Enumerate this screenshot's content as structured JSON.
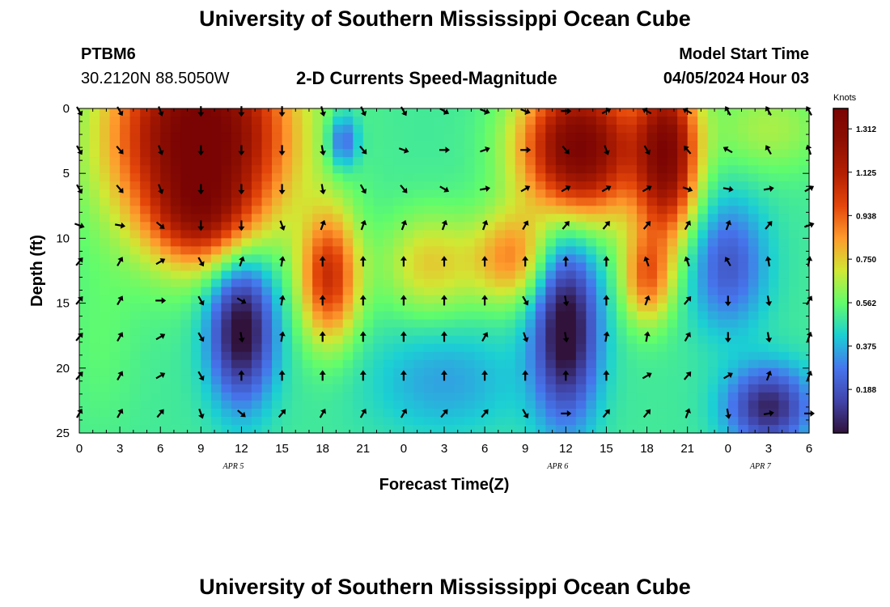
{
  "header": {
    "title": "University of Southern Mississippi Ocean Cube",
    "station_id": "PTBM6",
    "station_coords": "30.2120N  88.5050W",
    "chart_title": "2-D Currents Speed-Magnitude",
    "model_label": "Model Start Time",
    "model_time": "04/05/2024 Hour 03"
  },
  "footer": {
    "title": "University of Southern Mississippi Ocean Cube"
  },
  "chart_data": {
    "type": "heatmap",
    "xlabel": "Forecast Time(Z)",
    "ylabel": "Depth (ft)",
    "x_tick_labels": [
      "0",
      "3",
      "6",
      "9",
      "12",
      "15",
      "18",
      "21",
      "0",
      "3",
      "6",
      "9",
      "12",
      "15",
      "18",
      "21",
      "0",
      "3",
      "6"
    ],
    "date_labels": [
      {
        "label": "APR 5",
        "tick_index": 3.8
      },
      {
        "label": "APR 6",
        "tick_index": 11.8
      },
      {
        "label": "APR 7",
        "tick_index": 16.8
      }
    ],
    "xlim": [
      0,
      54
    ],
    "ylim": [
      0,
      25
    ],
    "y_ticks": [
      0,
      5,
      10,
      15,
      20,
      25
    ],
    "y_inverted": true,
    "colorbar": {
      "title": "Knots",
      "range": [
        0,
        1.4
      ],
      "tick_labels": [
        "1.312",
        "1.125",
        "0.938",
        "0.750",
        "0.562",
        "0.375",
        "0.188"
      ],
      "tick_values": [
        1.312,
        1.125,
        0.938,
        0.75,
        0.562,
        0.375,
        0.188
      ]
    },
    "speed_blobs": [
      {
        "x": 9,
        "y": 2,
        "sx": 4.5,
        "sy": 5.5,
        "v": 0.95
      },
      {
        "x": 9,
        "y": 8.5,
        "sx": 2.5,
        "sy": 2.5,
        "v": 0.35
      },
      {
        "x": 37,
        "y": 3,
        "sx": 3,
        "sy": 3.8,
        "v": 0.9
      },
      {
        "x": 43.5,
        "y": 3.5,
        "sx": 1.6,
        "sy": 4.5,
        "v": 0.8
      },
      {
        "x": 18.5,
        "y": 13,
        "sx": 1.5,
        "sy": 3.5,
        "v": 0.55
      },
      {
        "x": 26,
        "y": 12,
        "sx": 2.5,
        "sy": 2.8,
        "v": 0.25
      },
      {
        "x": 32,
        "y": 11.5,
        "sx": 2,
        "sy": 2.5,
        "v": 0.35
      },
      {
        "x": 42,
        "y": 13,
        "sx": 1.3,
        "sy": 2.5,
        "v": 0.4
      },
      {
        "x": 51,
        "y": 1.5,
        "sx": 3,
        "sy": 2.5,
        "v": 0.15
      },
      {
        "x": 12,
        "y": 17,
        "sx": 1.7,
        "sy": 4,
        "v": -0.55
      },
      {
        "x": 36,
        "y": 17,
        "sx": 1.7,
        "sy": 5,
        "v": -0.55
      },
      {
        "x": 51,
        "y": 23,
        "sx": 2.2,
        "sy": 2.2,
        "v": -0.45
      },
      {
        "x": 48,
        "y": 12,
        "sx": 2,
        "sy": 3.5,
        "v": -0.3
      },
      {
        "x": 19.5,
        "y": 2.5,
        "sx": 0.8,
        "sy": 1.5,
        "v": -0.3
      },
      {
        "x": 27,
        "y": 21,
        "sx": 4,
        "sy": 3,
        "v": -0.15
      },
      {
        "x": 1.5,
        "y": 18,
        "sx": 2,
        "sy": 5,
        "v": 0.05
      }
    ],
    "base_speed": 0.5,
    "arrows": {
      "x": [
        0,
        3,
        6,
        9,
        12,
        15,
        18,
        21,
        24,
        27,
        30,
        33,
        36,
        39,
        42,
        45,
        48,
        51,
        54
      ],
      "depth": [
        0.2,
        3.2,
        6.2,
        9,
        11.8,
        14.8,
        17.6,
        20.6,
        23.5
      ],
      "dir_deg": [
        [
          150,
          150,
          160,
          180,
          180,
          180,
          165,
          155,
          150,
          120,
          110,
          110,
          90,
          60,
          300,
          300,
          330,
          330,
          330
        ],
        [
          150,
          140,
          160,
          180,
          180,
          180,
          170,
          140,
          110,
          90,
          70,
          90,
          140,
          160,
          150,
          320,
          300,
          330,
          340
        ],
        [
          150,
          140,
          160,
          180,
          180,
          180,
          170,
          150,
          140,
          120,
          80,
          60,
          60,
          60,
          60,
          110,
          100,
          80,
          60
        ],
        [
          110,
          100,
          130,
          180,
          180,
          160,
          20,
          20,
          20,
          20,
          20,
          30,
          40,
          40,
          40,
          30,
          20,
          40,
          70
        ],
        [
          40,
          30,
          60,
          150,
          20,
          10,
          0,
          0,
          0,
          0,
          0,
          0,
          0,
          0,
          340,
          340,
          330,
          350,
          10
        ],
        [
          40,
          30,
          90,
          150,
          120,
          10,
          0,
          0,
          0,
          0,
          0,
          150,
          170,
          0,
          20,
          40,
          180,
          170,
          30
        ],
        [
          40,
          30,
          60,
          150,
          170,
          10,
          0,
          0,
          0,
          0,
          30,
          160,
          170,
          10,
          10,
          30,
          180,
          170,
          20
        ],
        [
          40,
          30,
          60,
          150,
          0,
          0,
          0,
          0,
          0,
          0,
          0,
          0,
          0,
          0,
          60,
          40,
          60,
          20,
          20
        ],
        [
          30,
          30,
          40,
          160,
          130,
          40,
          30,
          30,
          30,
          40,
          40,
          150,
          90,
          40,
          40,
          20,
          170,
          80,
          90
        ]
      ]
    }
  }
}
